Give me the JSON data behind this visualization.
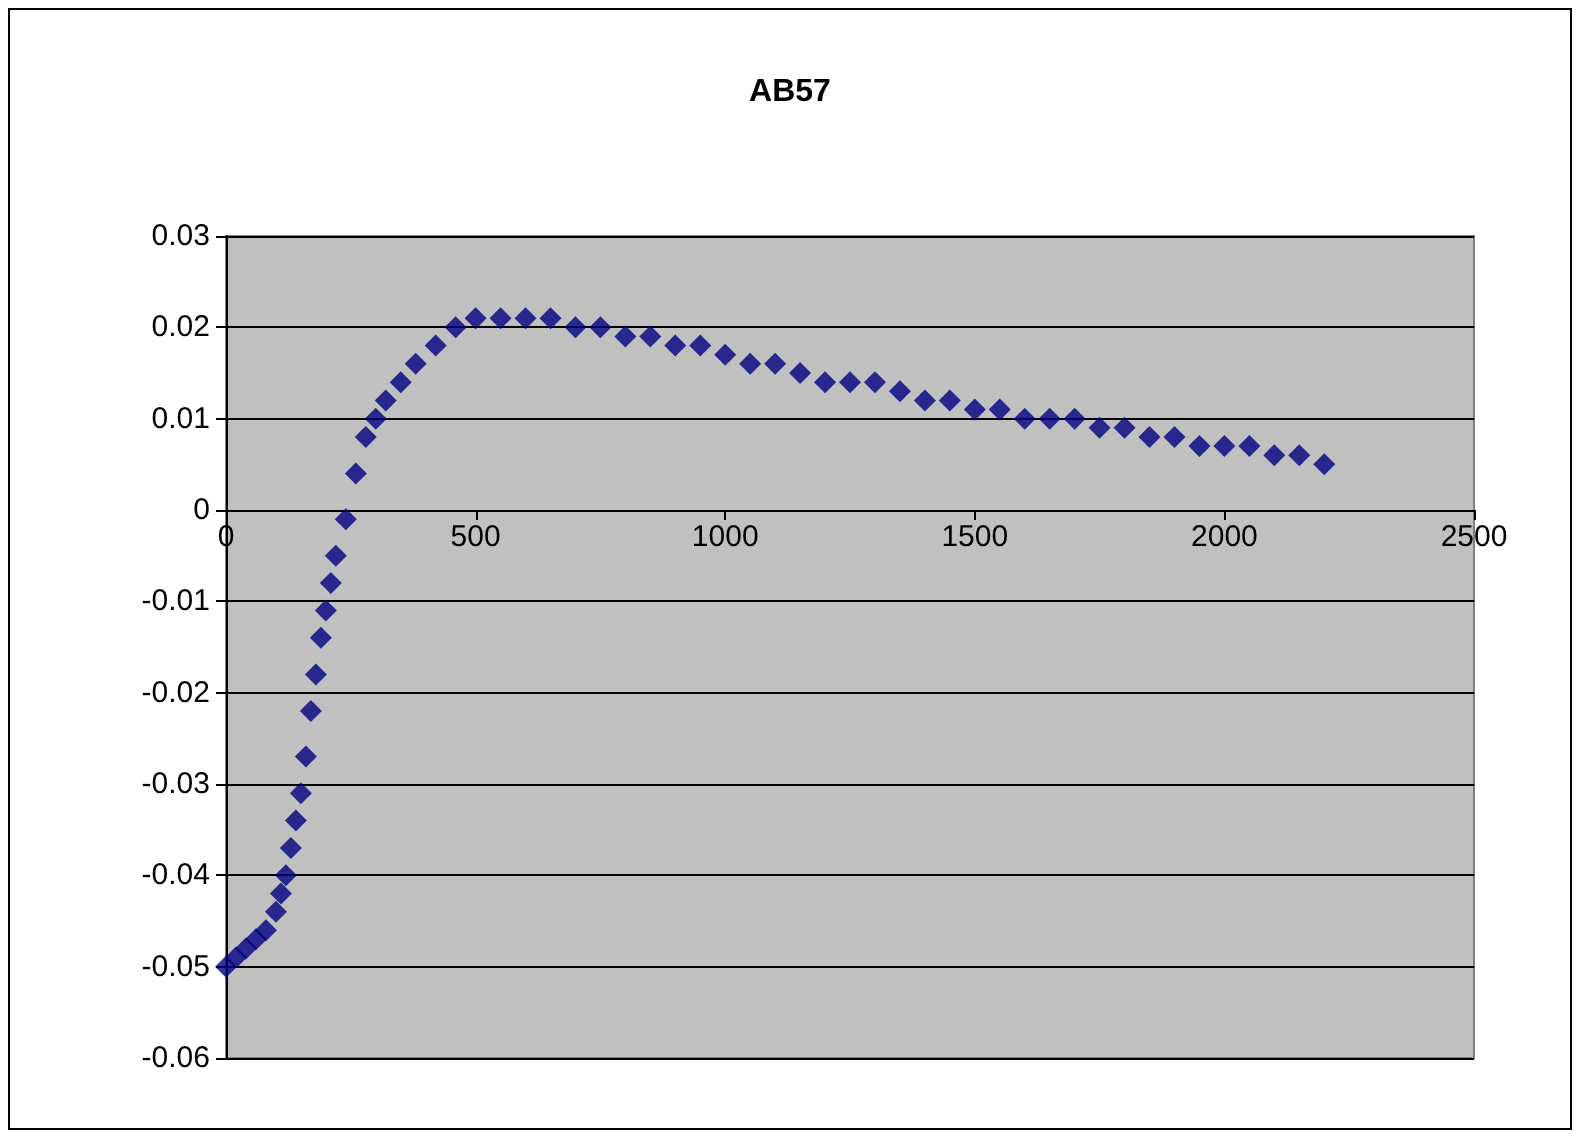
{
  "chart_data": {
    "type": "scatter",
    "title": "AB57",
    "x": [
      0,
      20,
      40,
      60,
      80,
      100,
      110,
      120,
      130,
      140,
      150,
      160,
      170,
      180,
      190,
      200,
      210,
      220,
      240,
      260,
      280,
      300,
      320,
      350,
      380,
      420,
      460,
      500,
      550,
      600,
      650,
      700,
      750,
      800,
      850,
      900,
      950,
      1000,
      1050,
      1100,
      1150,
      1200,
      1250,
      1300,
      1350,
      1400,
      1450,
      1500,
      1550,
      1600,
      1650,
      1700,
      1750,
      1800,
      1850,
      1900,
      1950,
      2000,
      2050,
      2100,
      2150,
      2200
    ],
    "series": [
      {
        "color": "#000080",
        "values": [
          -0.05,
          -0.049,
          -0.048,
          -0.047,
          -0.046,
          -0.044,
          -0.042,
          -0.04,
          -0.037,
          -0.034,
          -0.031,
          -0.027,
          -0.022,
          -0.018,
          -0.014,
          -0.011,
          -0.008,
          -0.005,
          -0.001,
          0.004,
          0.008,
          0.01,
          0.012,
          0.014,
          0.016,
          0.018,
          0.02,
          0.021,
          0.021,
          0.021,
          0.021,
          0.02,
          0.02,
          0.019,
          0.019,
          0.018,
          0.018,
          0.017,
          0.016,
          0.016,
          0.015,
          0.014,
          0.014,
          0.014,
          0.013,
          0.012,
          0.012,
          0.011,
          0.011,
          0.01,
          0.01,
          0.01,
          0.009,
          0.009,
          0.008,
          0.008,
          0.007,
          0.007,
          0.007,
          0.006,
          0.006,
          0.005
        ]
      }
    ],
    "xlim": [
      0,
      2500
    ],
    "xticks": [
      0,
      500,
      1000,
      1500,
      2000,
      2500
    ],
    "ylim": [
      -0.06,
      0.03
    ],
    "yticks": [
      -0.06,
      -0.05,
      -0.04,
      -0.03,
      -0.02,
      -0.01,
      0,
      0.01,
      0.02,
      0.03
    ],
    "grid": "y",
    "marker": "diamond"
  }
}
